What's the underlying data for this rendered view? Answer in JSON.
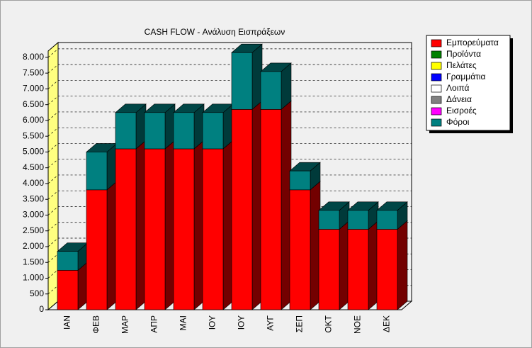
{
  "chart_data": {
    "type": "bar3d_stacked",
    "title": "CASH FLOW - Ανάλυση Εισπράξεων",
    "categories": [
      "ΙΑΝ",
      "ΦΕΒ",
      "ΜΑΡ",
      "ΑΠΡ",
      "ΜΑΙ",
      "ΙΟΥ",
      "ΙΟΥ",
      "ΑΥΓ",
      "ΣΕΠ",
      "ΟΚΤ",
      "ΝΟΕ",
      "ΔΕΚ"
    ],
    "series": [
      {
        "name": "Εμπορεύματα",
        "color": "#ff0000",
        "values": [
          1250,
          3800,
          5100,
          5100,
          5100,
          5100,
          6350,
          6350,
          3800,
          2550,
          2550,
          2550
        ]
      },
      {
        "name": "Προϊόντα",
        "color": "#008000",
        "values": [
          0,
          0,
          0,
          0,
          0,
          0,
          0,
          0,
          0,
          0,
          0,
          0
        ]
      },
      {
        "name": "Πελάτες",
        "color": "#ffff00",
        "values": [
          0,
          0,
          0,
          0,
          0,
          0,
          0,
          0,
          0,
          0,
          0,
          0
        ]
      },
      {
        "name": "Γραμμάτια",
        "color": "#0000ff",
        "values": [
          0,
          0,
          0,
          0,
          0,
          0,
          0,
          0,
          0,
          0,
          0,
          0
        ]
      },
      {
        "name": "Λοιπά",
        "color": "#ffffff",
        "values": [
          0,
          0,
          0,
          0,
          0,
          0,
          0,
          0,
          0,
          0,
          0,
          0
        ]
      },
      {
        "name": "Δάνεια",
        "color": "#808080",
        "values": [
          0,
          0,
          0,
          0,
          0,
          0,
          0,
          0,
          0,
          0,
          0,
          0
        ]
      },
      {
        "name": "Εισροές",
        "color": "#ff00ff",
        "values": [
          0,
          0,
          0,
          0,
          0,
          0,
          0,
          0,
          0,
          0,
          0,
          0
        ]
      },
      {
        "name": "Φόροι",
        "color": "#008080",
        "values": [
          600,
          1200,
          1150,
          1150,
          1150,
          1150,
          1800,
          1200,
          600,
          600,
          600,
          600
        ]
      }
    ],
    "ylim": [
      0,
      8200
    ],
    "yticks": [
      0,
      {
        "value": 500,
        "label": "500"
      },
      {
        "value": 1000,
        "label": "1.000"
      },
      {
        "value": 1500,
        "label": "1.500"
      },
      {
        "value": 2000,
        "label": "2.000"
      },
      {
        "value": 2500,
        "label": "2.500"
      },
      {
        "value": 3000,
        "label": "3.000"
      },
      {
        "value": 3500,
        "label": "3.500"
      },
      {
        "value": 4000,
        "label": "4.000"
      },
      {
        "value": 4500,
        "label": "4.500"
      },
      {
        "value": 5000,
        "label": "5.000"
      },
      {
        "value": 5500,
        "label": "5.500"
      },
      {
        "value": 6000,
        "label": "6.000"
      },
      {
        "value": 6500,
        "label": "6.500"
      },
      {
        "value": 7000,
        "label": "7.000"
      },
      {
        "value": 7500,
        "label": "7.500"
      },
      {
        "value": 8000,
        "label": "8.000"
      }
    ],
    "grid": true,
    "legend": "right"
  }
}
